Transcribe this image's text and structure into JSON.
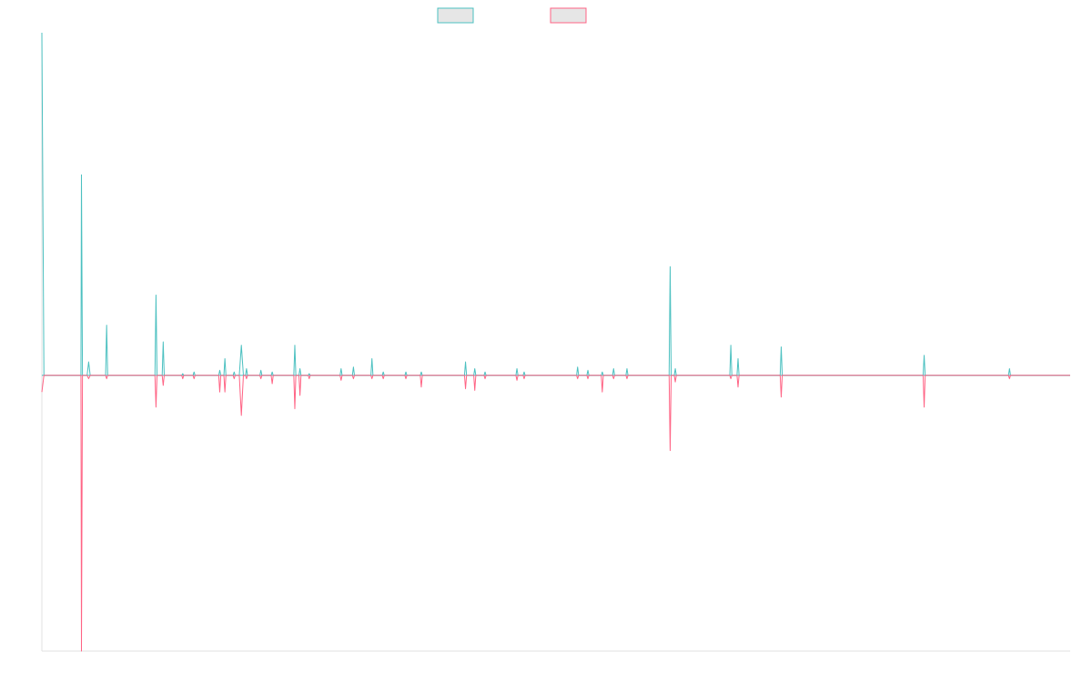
{
  "chart_data": {
    "type": "line",
    "title": "",
    "xlabel": "",
    "ylabel": "",
    "x_range": [
      0,
      1
    ],
    "ylim": [
      -1.65,
      2.05
    ],
    "grid": false,
    "legend_position": "top-center",
    "x_ticks_shown": false,
    "y_ticks_shown": false,
    "series": [
      {
        "color": "#4bc0c0",
        "fill_color": "#e6e6e6",
        "values": [
          [
            0.0,
            2.05
          ],
          [
            0.002,
            0.0
          ],
          [
            0.038,
            0.0
          ],
          [
            0.0385,
            1.2
          ],
          [
            0.0395,
            0.0
          ],
          [
            0.044,
            0.0
          ],
          [
            0.0455,
            0.08
          ],
          [
            0.047,
            0.0
          ],
          [
            0.062,
            0.0
          ],
          [
            0.063,
            0.3
          ],
          [
            0.064,
            0.0
          ],
          [
            0.11,
            0.0
          ],
          [
            0.111,
            0.48
          ],
          [
            0.112,
            0.0
          ],
          [
            0.117,
            0.0
          ],
          [
            0.118,
            0.2
          ],
          [
            0.119,
            0.0
          ],
          [
            0.136,
            0.0
          ],
          [
            0.137,
            0.01
          ],
          [
            0.138,
            0.0
          ],
          [
            0.147,
            0.0
          ],
          [
            0.148,
            0.02
          ],
          [
            0.149,
            0.0
          ],
          [
            0.172,
            0.0
          ],
          [
            0.173,
            0.03
          ],
          [
            0.174,
            0.0
          ],
          [
            0.177,
            0.0
          ],
          [
            0.178,
            0.1
          ],
          [
            0.179,
            0.0
          ],
          [
            0.186,
            0.0
          ],
          [
            0.187,
            0.02
          ],
          [
            0.188,
            0.0
          ],
          [
            0.192,
            0.0
          ],
          [
            0.194,
            0.18
          ],
          [
            0.196,
            0.0
          ],
          [
            0.198,
            0.0
          ],
          [
            0.199,
            0.04
          ],
          [
            0.2,
            0.0
          ],
          [
            0.212,
            0.0
          ],
          [
            0.213,
            0.03
          ],
          [
            0.214,
            0.0
          ],
          [
            0.223,
            0.0
          ],
          [
            0.224,
            0.02
          ],
          [
            0.225,
            0.0
          ],
          [
            0.245,
            0.0
          ],
          [
            0.246,
            0.18
          ],
          [
            0.247,
            0.0
          ],
          [
            0.25,
            0.0
          ],
          [
            0.251,
            0.04
          ],
          [
            0.252,
            0.0
          ],
          [
            0.259,
            0.0
          ],
          [
            0.26,
            0.01
          ],
          [
            0.261,
            0.0
          ],
          [
            0.29,
            0.0
          ],
          [
            0.291,
            0.04
          ],
          [
            0.292,
            0.0
          ],
          [
            0.302,
            0.0
          ],
          [
            0.303,
            0.05
          ],
          [
            0.304,
            0.0
          ],
          [
            0.32,
            0.0
          ],
          [
            0.321,
            0.1
          ],
          [
            0.322,
            0.0
          ],
          [
            0.331,
            0.0
          ],
          [
            0.332,
            0.02
          ],
          [
            0.333,
            0.0
          ],
          [
            0.353,
            0.0
          ],
          [
            0.354,
            0.02
          ],
          [
            0.355,
            0.0
          ],
          [
            0.368,
            0.0
          ],
          [
            0.369,
            0.02
          ],
          [
            0.37,
            0.0
          ],
          [
            0.411,
            0.0
          ],
          [
            0.412,
            0.08
          ],
          [
            0.413,
            0.0
          ],
          [
            0.42,
            0.0
          ],
          [
            0.421,
            0.04
          ],
          [
            0.422,
            0.0
          ],
          [
            0.43,
            0.0
          ],
          [
            0.431,
            0.02
          ],
          [
            0.432,
            0.0
          ],
          [
            0.461,
            0.0
          ],
          [
            0.462,
            0.04
          ],
          [
            0.463,
            0.0
          ],
          [
            0.468,
            0.0
          ],
          [
            0.469,
            0.02
          ],
          [
            0.47,
            0.0
          ],
          [
            0.52,
            0.0
          ],
          [
            0.521,
            0.05
          ],
          [
            0.522,
            0.0
          ],
          [
            0.53,
            0.0
          ],
          [
            0.531,
            0.03
          ],
          [
            0.532,
            0.0
          ],
          [
            0.544,
            0.0
          ],
          [
            0.545,
            0.02
          ],
          [
            0.546,
            0.0
          ],
          [
            0.555,
            0.0
          ],
          [
            0.556,
            0.04
          ],
          [
            0.557,
            0.0
          ],
          [
            0.568,
            0.0
          ],
          [
            0.569,
            0.04
          ],
          [
            0.57,
            0.0
          ],
          [
            0.61,
            0.0
          ],
          [
            0.611,
            0.65
          ],
          [
            0.612,
            0.0
          ],
          [
            0.615,
            0.0
          ],
          [
            0.616,
            0.04
          ],
          [
            0.617,
            0.0
          ],
          [
            0.669,
            0.0
          ],
          [
            0.67,
            0.18
          ],
          [
            0.671,
            0.0
          ],
          [
            0.676,
            0.0
          ],
          [
            0.677,
            0.1
          ],
          [
            0.678,
            0.0
          ],
          [
            0.718,
            0.0
          ],
          [
            0.719,
            0.17
          ],
          [
            0.72,
            0.0
          ],
          [
            0.857,
            0.0
          ],
          [
            0.858,
            0.12
          ],
          [
            0.859,
            0.0
          ],
          [
            0.94,
            0.0
          ],
          [
            0.941,
            0.04
          ],
          [
            0.942,
            0.0
          ],
          [
            0.1,
            0.0
          ],
          [
            1.0,
            0.0
          ]
        ]
      },
      {
        "color": "#ff6384",
        "fill_color": "#e6e6e6",
        "values": [
          [
            0.0,
            -0.1
          ],
          [
            0.002,
            0.0
          ],
          [
            0.038,
            0.0
          ],
          [
            0.0385,
            -1.65
          ],
          [
            0.0395,
            0.0
          ],
          [
            0.044,
            0.0
          ],
          [
            0.0455,
            -0.02
          ],
          [
            0.047,
            0.0
          ],
          [
            0.062,
            0.0
          ],
          [
            0.063,
            -0.02
          ],
          [
            0.064,
            0.0
          ],
          [
            0.11,
            0.0
          ],
          [
            0.111,
            -0.19
          ],
          [
            0.112,
            0.0
          ],
          [
            0.117,
            0.0
          ],
          [
            0.118,
            -0.06
          ],
          [
            0.119,
            0.0
          ],
          [
            0.136,
            0.0
          ],
          [
            0.137,
            -0.02
          ],
          [
            0.138,
            0.0
          ],
          [
            0.147,
            0.0
          ],
          [
            0.148,
            -0.02
          ],
          [
            0.149,
            0.0
          ],
          [
            0.172,
            0.0
          ],
          [
            0.173,
            -0.1
          ],
          [
            0.174,
            0.0
          ],
          [
            0.177,
            0.0
          ],
          [
            0.178,
            -0.1
          ],
          [
            0.179,
            0.0
          ],
          [
            0.186,
            0.0
          ],
          [
            0.187,
            -0.02
          ],
          [
            0.188,
            0.0
          ],
          [
            0.192,
            0.0
          ],
          [
            0.194,
            -0.24
          ],
          [
            0.196,
            0.0
          ],
          [
            0.198,
            0.0
          ],
          [
            0.199,
            -0.02
          ],
          [
            0.2,
            0.0
          ],
          [
            0.212,
            0.0
          ],
          [
            0.213,
            -0.02
          ],
          [
            0.214,
            0.0
          ],
          [
            0.223,
            0.0
          ],
          [
            0.224,
            -0.05
          ],
          [
            0.225,
            0.0
          ],
          [
            0.245,
            0.0
          ],
          [
            0.246,
            -0.2
          ],
          [
            0.247,
            0.0
          ],
          [
            0.25,
            0.0
          ],
          [
            0.251,
            -0.12
          ],
          [
            0.252,
            0.0
          ],
          [
            0.259,
            0.0
          ],
          [
            0.26,
            -0.02
          ],
          [
            0.261,
            0.0
          ],
          [
            0.29,
            0.0
          ],
          [
            0.291,
            -0.03
          ],
          [
            0.292,
            0.0
          ],
          [
            0.302,
            0.0
          ],
          [
            0.303,
            -0.02
          ],
          [
            0.304,
            0.0
          ],
          [
            0.32,
            0.0
          ],
          [
            0.321,
            -0.02
          ],
          [
            0.322,
            0.0
          ],
          [
            0.331,
            0.0
          ],
          [
            0.332,
            -0.02
          ],
          [
            0.333,
            0.0
          ],
          [
            0.353,
            0.0
          ],
          [
            0.354,
            -0.02
          ],
          [
            0.355,
            0.0
          ],
          [
            0.368,
            0.0
          ],
          [
            0.369,
            -0.07
          ],
          [
            0.37,
            0.0
          ],
          [
            0.411,
            0.0
          ],
          [
            0.412,
            -0.08
          ],
          [
            0.413,
            0.0
          ],
          [
            0.42,
            0.0
          ],
          [
            0.421,
            -0.09
          ],
          [
            0.422,
            0.0
          ],
          [
            0.43,
            0.0
          ],
          [
            0.431,
            -0.02
          ],
          [
            0.432,
            0.0
          ],
          [
            0.461,
            0.0
          ],
          [
            0.462,
            -0.03
          ],
          [
            0.463,
            0.0
          ],
          [
            0.468,
            0.0
          ],
          [
            0.469,
            -0.02
          ],
          [
            0.47,
            0.0
          ],
          [
            0.52,
            0.0
          ],
          [
            0.521,
            -0.02
          ],
          [
            0.522,
            0.0
          ],
          [
            0.53,
            0.0
          ],
          [
            0.531,
            -0.02
          ],
          [
            0.532,
            0.0
          ],
          [
            0.544,
            0.0
          ],
          [
            0.545,
            -0.1
          ],
          [
            0.546,
            0.0
          ],
          [
            0.555,
            0.0
          ],
          [
            0.556,
            -0.02
          ],
          [
            0.557,
            0.0
          ],
          [
            0.568,
            0.0
          ],
          [
            0.569,
            -0.02
          ],
          [
            0.57,
            0.0
          ],
          [
            0.61,
            0.0
          ],
          [
            0.611,
            -0.45
          ],
          [
            0.612,
            0.0
          ],
          [
            0.615,
            0.0
          ],
          [
            0.616,
            -0.04
          ],
          [
            0.617,
            0.0
          ],
          [
            0.669,
            0.0
          ],
          [
            0.67,
            -0.02
          ],
          [
            0.671,
            0.0
          ],
          [
            0.676,
            0.0
          ],
          [
            0.677,
            -0.07
          ],
          [
            0.678,
            0.0
          ],
          [
            0.718,
            0.0
          ],
          [
            0.719,
            -0.13
          ],
          [
            0.72,
            0.0
          ],
          [
            0.857,
            0.0
          ],
          [
            0.858,
            -0.19
          ],
          [
            0.859,
            0.0
          ],
          [
            0.94,
            0.0
          ],
          [
            0.941,
            -0.02
          ],
          [
            0.942,
            0.0
          ],
          [
            1.0,
            0.0
          ]
        ]
      }
    ]
  }
}
